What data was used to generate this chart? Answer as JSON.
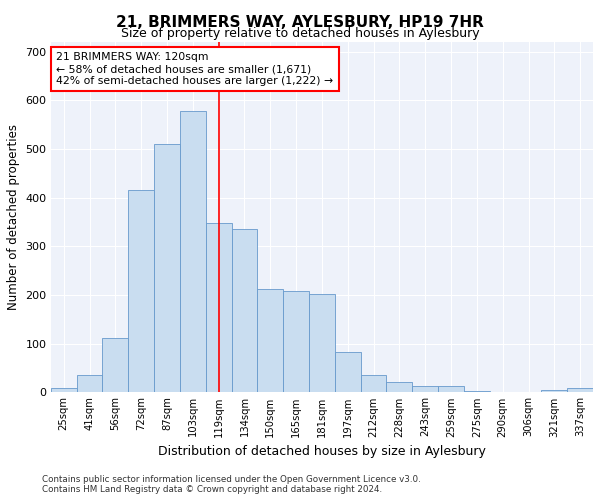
{
  "title": "21, BRIMMERS WAY, AYLESBURY, HP19 7HR",
  "subtitle": "Size of property relative to detached houses in Aylesbury",
  "xlabel": "Distribution of detached houses by size in Aylesbury",
  "ylabel": "Number of detached properties",
  "bar_color": "#c9ddf0",
  "bar_edge_color": "#6699cc",
  "categories": [
    "25sqm",
    "41sqm",
    "56sqm",
    "72sqm",
    "87sqm",
    "103sqm",
    "119sqm",
    "134sqm",
    "150sqm",
    "165sqm",
    "181sqm",
    "197sqm",
    "212sqm",
    "228sqm",
    "243sqm",
    "259sqm",
    "275sqm",
    "290sqm",
    "306sqm",
    "321sqm",
    "337sqm"
  ],
  "values": [
    8,
    35,
    112,
    415,
    510,
    578,
    347,
    335,
    212,
    208,
    202,
    82,
    35,
    20,
    12,
    12,
    3,
    0,
    0,
    5,
    8
  ],
  "property_line_x": 6.0,
  "annotation_text": "21 BRIMMERS WAY: 120sqm\n← 58% of detached houses are smaller (1,671)\n42% of semi-detached houses are larger (1,222) →",
  "annotation_box_color": "white",
  "annotation_box_edge_color": "red",
  "vline_color": "red",
  "ylim": [
    0,
    720
  ],
  "yticks": [
    0,
    100,
    200,
    300,
    400,
    500,
    600,
    700
  ],
  "footer1": "Contains HM Land Registry data © Crown copyright and database right 2024.",
  "footer2": "Contains public sector information licensed under the Open Government Licence v3.0.",
  "background_color": "#eef2fa"
}
